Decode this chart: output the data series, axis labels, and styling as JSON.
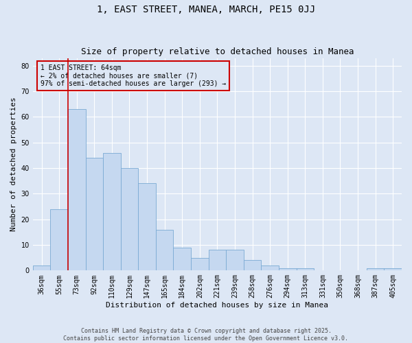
{
  "title": "1, EAST STREET, MANEA, MARCH, PE15 0JJ",
  "subtitle": "Size of property relative to detached houses in Manea",
  "xlabel": "Distribution of detached houses by size in Manea",
  "ylabel": "Number of detached properties",
  "categories": [
    "36sqm",
    "55sqm",
    "73sqm",
    "92sqm",
    "110sqm",
    "129sqm",
    "147sqm",
    "165sqm",
    "184sqm",
    "202sqm",
    "221sqm",
    "239sqm",
    "258sqm",
    "276sqm",
    "294sqm",
    "313sqm",
    "331sqm",
    "350sqm",
    "368sqm",
    "387sqm",
    "405sqm"
  ],
  "values": [
    2,
    24,
    63,
    44,
    46,
    40,
    34,
    16,
    9,
    5,
    8,
    8,
    4,
    2,
    1,
    1,
    0,
    0,
    0,
    1,
    1
  ],
  "bar_color": "#c5d8f0",
  "bar_edge_color": "#7aaad4",
  "background_color": "#dde7f5",
  "grid_color": "#ffffff",
  "annotation_box_color": "#cc0000",
  "annotation_line1": "1 EAST STREET: 64sqm",
  "annotation_line2": "← 2% of detached houses are smaller (7)",
  "annotation_line3": "97% of semi-detached houses are larger (293) →",
  "vline_color": "#cc0000",
  "vline_xindex": 1.5,
  "ylim": [
    0,
    83
  ],
  "yticks": [
    0,
    10,
    20,
    30,
    40,
    50,
    60,
    70,
    80
  ],
  "footer": "Contains HM Land Registry data © Crown copyright and database right 2025.\nContains public sector information licensed under the Open Government Licence v3.0.",
  "title_fontsize": 10,
  "subtitle_fontsize": 9,
  "axis_label_fontsize": 8,
  "tick_fontsize": 7,
  "annotation_fontsize": 7,
  "footer_fontsize": 6
}
